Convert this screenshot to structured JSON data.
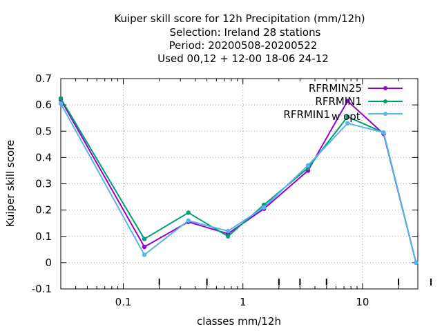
{
  "chart_data": {
    "type": "line",
    "title_lines": [
      "Kuiper skill score  for 12h Precipitation (mm/12h)",
      "Selection: Ireland     28 stations",
      "Period: 20200508-20200522",
      "Used  00,12  + 12-00 18-06 24-12"
    ],
    "xlabel": "classes mm/12h",
    "ylabel": "Kuiper skill score",
    "x_scale": "log",
    "xlim": [
      0.03,
      29
    ],
    "ylim": [
      -0.1,
      0.7
    ],
    "x_ticks": [
      0.1,
      1,
      10
    ],
    "x_tick_labels": [
      "0.1",
      "1",
      "10"
    ],
    "y_ticks": [
      -0.1,
      0,
      0.1,
      0.2,
      0.3,
      0.4,
      0.5,
      0.6,
      0.7
    ],
    "y_tick_labels": [
      "-0.1",
      "0",
      "0.1",
      "0.2",
      "0.3",
      "0.4",
      "0.5",
      "0.6",
      "0.7"
    ],
    "grid": true,
    "legend_position": "top-right",
    "series": [
      {
        "name": "RFRMIN25",
        "color": "#9400d3",
        "x": [
          0.03,
          0.15,
          0.35,
          0.75,
          1.5,
          3.5,
          7.5,
          15,
          28
        ],
        "values": [
          0.62,
          0.06,
          0.155,
          0.11,
          0.205,
          0.35,
          0.615,
          0.49,
          0.0
        ]
      },
      {
        "name": "RFRMIN1",
        "color": "#009e73",
        "x": [
          0.03,
          0.15,
          0.35,
          0.75,
          1.5,
          3.5,
          7.5,
          15,
          28
        ],
        "values": [
          0.625,
          0.09,
          0.19,
          0.1,
          0.22,
          0.36,
          0.555,
          0.495,
          0.0
        ]
      },
      {
        "name_main": "RFRMIN1",
        "name_sub": "w opt",
        "color": "#56b4e9",
        "x": [
          0.03,
          0.15,
          0.35,
          0.75,
          1.5,
          3.5,
          7.5,
          15,
          28
        ],
        "values": [
          0.605,
          0.03,
          0.16,
          0.12,
          0.21,
          0.37,
          0.53,
          0.495,
          0.0
        ]
      }
    ]
  }
}
